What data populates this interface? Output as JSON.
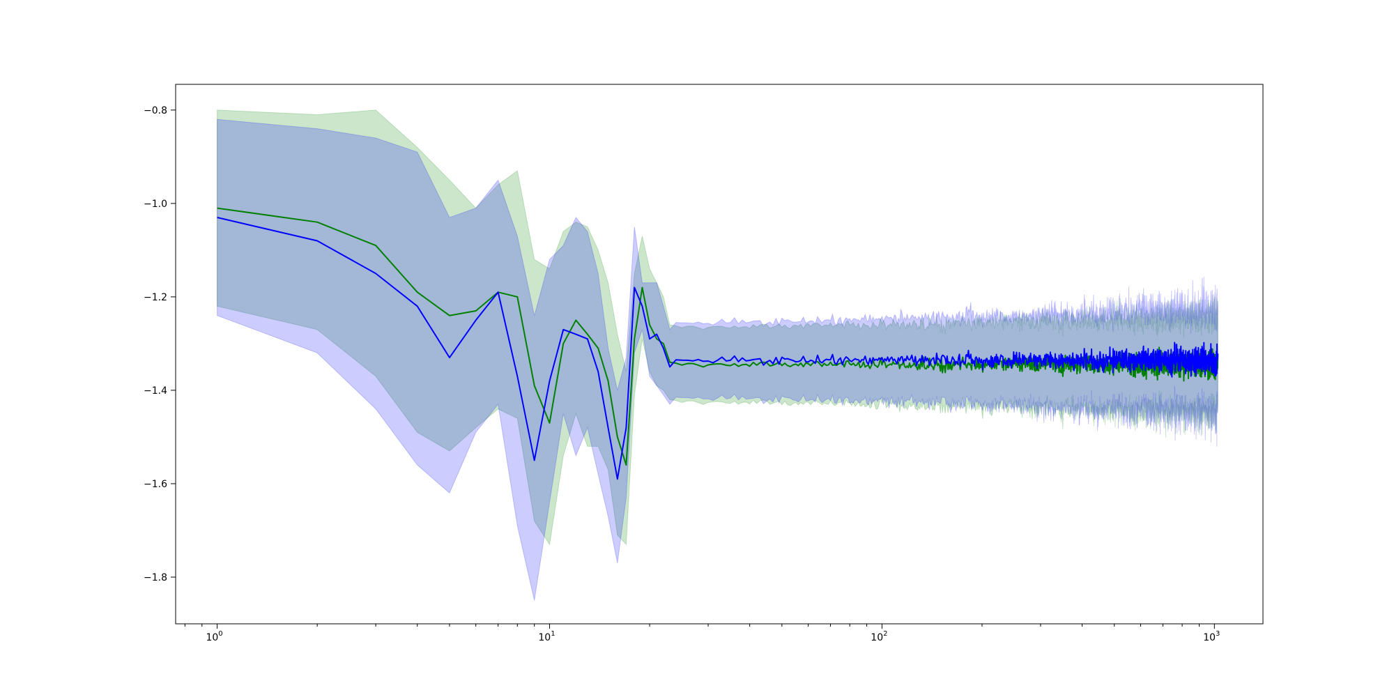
{
  "chart_data": {
    "type": "line",
    "title": "",
    "xlabel": "",
    "ylabel": "",
    "x_scale": "log",
    "xlim": [
      0.75,
      1400
    ],
    "ylim": [
      -1.9,
      -0.745
    ],
    "grid": false,
    "legend": "none",
    "x_ticks": [
      {
        "value": 1,
        "base": "10",
        "exp": "0"
      },
      {
        "value": 10,
        "base": "10",
        "exp": "1"
      },
      {
        "value": 100,
        "base": "10",
        "exp": "2"
      },
      {
        "value": 1000,
        "base": "10",
        "exp": "3"
      }
    ],
    "y_ticks": [
      {
        "value": -0.8,
        "label": "−0.8"
      },
      {
        "value": -1.0,
        "label": "−1.0"
      },
      {
        "value": -1.2,
        "label": "−1.2"
      },
      {
        "value": -1.4,
        "label": "−1.4"
      },
      {
        "value": -1.6,
        "label": "−1.6"
      },
      {
        "value": -1.8,
        "label": "−1.8"
      }
    ],
    "series": [
      {
        "color": "#008000",
        "band_color": "#008000",
        "band_opacity": 0.2,
        "mean_points": [
          [
            1,
            -1.01
          ],
          [
            2,
            -1.04
          ],
          [
            3,
            -1.09
          ],
          [
            4,
            -1.19
          ],
          [
            5,
            -1.24
          ],
          [
            6,
            -1.23
          ],
          [
            7,
            -1.19
          ],
          [
            8,
            -1.2
          ],
          [
            9,
            -1.39
          ],
          [
            10,
            -1.47
          ],
          [
            11,
            -1.3
          ],
          [
            12,
            -1.25
          ],
          [
            13,
            -1.28
          ],
          [
            14,
            -1.31
          ],
          [
            15,
            -1.38
          ],
          [
            16,
            -1.5
          ],
          [
            17,
            -1.56
          ],
          [
            18,
            -1.29
          ],
          [
            19,
            -1.18
          ],
          [
            20,
            -1.26
          ],
          [
            21,
            -1.29
          ],
          [
            22,
            -1.3
          ],
          [
            23,
            -1.34
          ]
        ],
        "upper_points": [
          [
            1,
            -0.8
          ],
          [
            2,
            -0.81
          ],
          [
            3,
            -0.8
          ],
          [
            4,
            -0.88
          ],
          [
            5,
            -0.95
          ],
          [
            6,
            -1.01
          ],
          [
            7,
            -0.96
          ],
          [
            8,
            -0.93
          ],
          [
            9,
            -1.12
          ],
          [
            10,
            -1.14
          ],
          [
            11,
            -1.06
          ],
          [
            12,
            -1.04
          ],
          [
            13,
            -1.05
          ],
          [
            14,
            -1.1
          ],
          [
            15,
            -1.17
          ],
          [
            16,
            -1.28
          ],
          [
            17,
            -1.36
          ],
          [
            18,
            -1.15
          ],
          [
            19,
            -1.07
          ],
          [
            20,
            -1.14
          ],
          [
            21,
            -1.17
          ],
          [
            22,
            -1.2
          ],
          [
            23,
            -1.26
          ]
        ],
        "lower_points": [
          [
            1,
            -1.22
          ],
          [
            2,
            -1.27
          ],
          [
            3,
            -1.37
          ],
          [
            4,
            -1.49
          ],
          [
            5,
            -1.53
          ],
          [
            6,
            -1.48
          ],
          [
            7,
            -1.44
          ],
          [
            8,
            -1.46
          ],
          [
            9,
            -1.68
          ],
          [
            10,
            -1.73
          ],
          [
            11,
            -1.54
          ],
          [
            12,
            -1.45
          ],
          [
            13,
            -1.52
          ],
          [
            14,
            -1.52
          ],
          [
            15,
            -1.57
          ],
          [
            16,
            -1.71
          ],
          [
            17,
            -1.73
          ],
          [
            18,
            -1.41
          ],
          [
            19,
            -1.29
          ],
          [
            20,
            -1.36
          ],
          [
            21,
            -1.39
          ],
          [
            22,
            -1.4
          ],
          [
            23,
            -1.42
          ]
        ],
        "tail": {
          "x_start": 24,
          "x_end": 1024,
          "mean": -1.345,
          "noise_start": 0.006,
          "noise_end": 0.03,
          "half_width_start": 0.08,
          "half_width_end": 0.085,
          "band_noise_end": 0.05
        }
      },
      {
        "color": "#0000ff",
        "band_color": "#0000ff",
        "band_opacity": 0.2,
        "mean_points": [
          [
            1,
            -1.03
          ],
          [
            2,
            -1.08
          ],
          [
            3,
            -1.15
          ],
          [
            4,
            -1.22
          ],
          [
            5,
            -1.33
          ],
          [
            6,
            -1.25
          ],
          [
            7,
            -1.19
          ],
          [
            8,
            -1.37
          ],
          [
            9,
            -1.55
          ],
          [
            10,
            -1.38
          ],
          [
            11,
            -1.27
          ],
          [
            12,
            -1.28
          ],
          [
            13,
            -1.29
          ],
          [
            14,
            -1.36
          ],
          [
            15,
            -1.48
          ],
          [
            16,
            -1.59
          ],
          [
            17,
            -1.48
          ],
          [
            18,
            -1.18
          ],
          [
            19,
            -1.22
          ],
          [
            20,
            -1.29
          ],
          [
            21,
            -1.28
          ],
          [
            22,
            -1.31
          ],
          [
            23,
            -1.35
          ]
        ],
        "upper_points": [
          [
            1,
            -0.82
          ],
          [
            2,
            -0.84
          ],
          [
            3,
            -0.86
          ],
          [
            4,
            -0.89
          ],
          [
            5,
            -1.03
          ],
          [
            6,
            -1.01
          ],
          [
            7,
            -0.95
          ],
          [
            8,
            -1.07
          ],
          [
            9,
            -1.24
          ],
          [
            10,
            -1.12
          ],
          [
            11,
            -1.09
          ],
          [
            12,
            -1.03
          ],
          [
            13,
            -1.06
          ],
          [
            14,
            -1.15
          ],
          [
            15,
            -1.31
          ],
          [
            16,
            -1.4
          ],
          [
            17,
            -1.33
          ],
          [
            18,
            -1.05
          ],
          [
            19,
            -1.17
          ],
          [
            20,
            -1.17
          ],
          [
            21,
            -1.17
          ],
          [
            22,
            -1.22
          ],
          [
            23,
            -1.27
          ]
        ],
        "lower_points": [
          [
            1,
            -1.24
          ],
          [
            2,
            -1.32
          ],
          [
            3,
            -1.44
          ],
          [
            4,
            -1.56
          ],
          [
            5,
            -1.62
          ],
          [
            6,
            -1.49
          ],
          [
            7,
            -1.43
          ],
          [
            8,
            -1.69
          ],
          [
            9,
            -1.85
          ],
          [
            10,
            -1.64
          ],
          [
            11,
            -1.45
          ],
          [
            12,
            -1.54
          ],
          [
            13,
            -1.48
          ],
          [
            14,
            -1.58
          ],
          [
            15,
            -1.67
          ],
          [
            16,
            -1.77
          ],
          [
            17,
            -1.63
          ],
          [
            18,
            -1.32
          ],
          [
            19,
            -1.27
          ],
          [
            20,
            -1.37
          ],
          [
            21,
            -1.39
          ],
          [
            22,
            -1.41
          ],
          [
            23,
            -1.43
          ]
        ],
        "tail": {
          "x_start": 24,
          "x_end": 1024,
          "mean": -1.335,
          "noise_start": 0.006,
          "noise_end": 0.03,
          "half_width_start": 0.08,
          "half_width_end": 0.09,
          "band_noise_end": 0.06
        }
      }
    ]
  }
}
